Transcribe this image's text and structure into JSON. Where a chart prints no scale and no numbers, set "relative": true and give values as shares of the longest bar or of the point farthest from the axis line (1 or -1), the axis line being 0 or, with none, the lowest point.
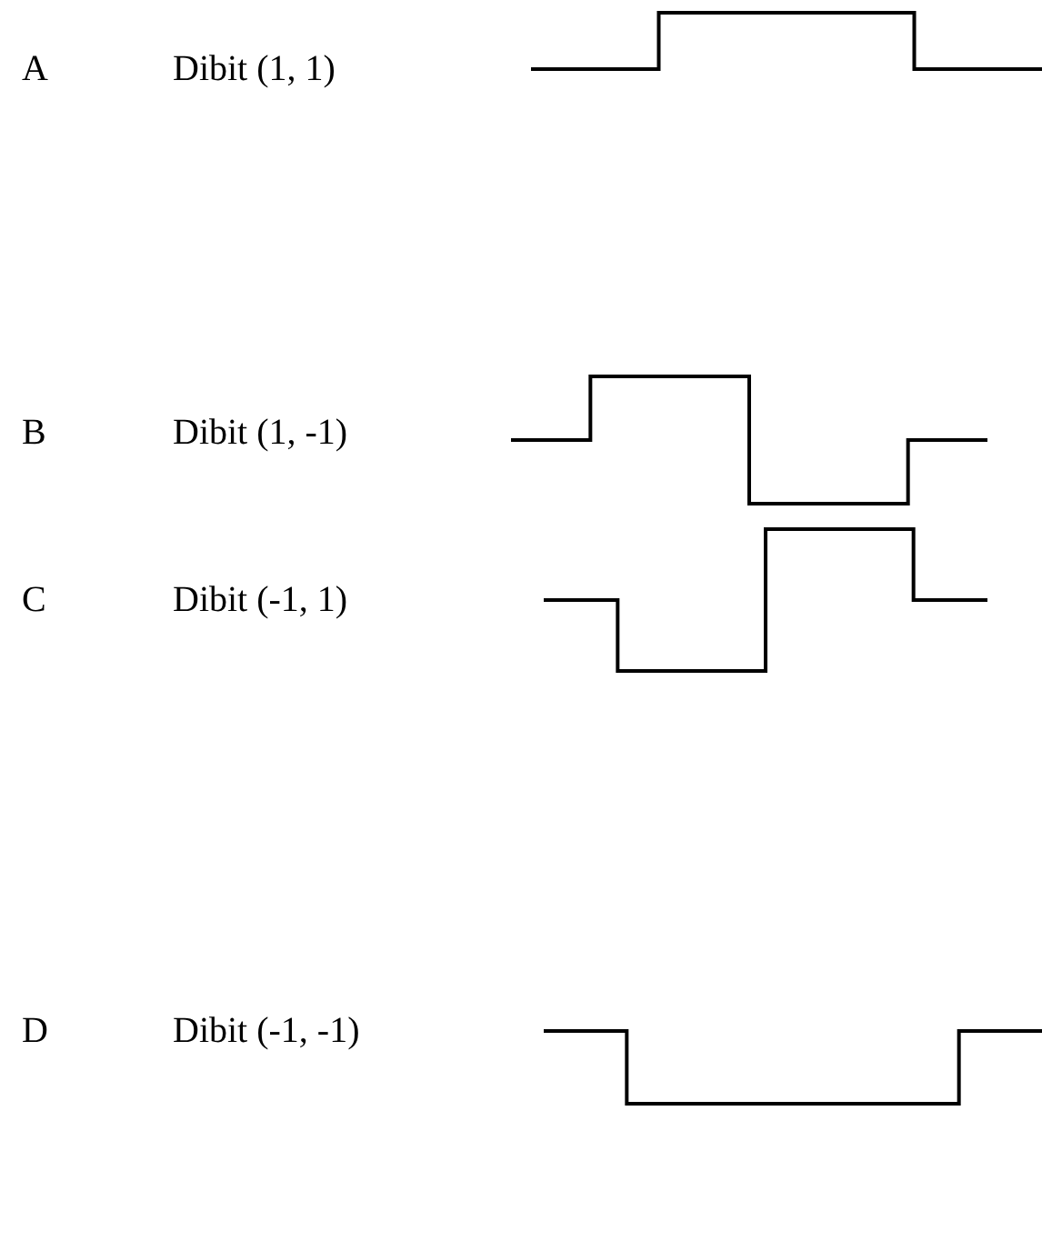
{
  "chart_data": [
    {
      "type": "step",
      "annotations": [
        "A"
      ],
      "title": "Dibit (1, 1)",
      "categories": [
        null,
        null,
        null
      ],
      "values": [
        0,
        1,
        0
      ],
      "color": "#000000",
      "relative": true
    },
    {
      "type": "step",
      "annotations": [
        "B"
      ],
      "title": "Dibit (1, -1)",
      "categories": [
        null,
        null,
        null,
        null
      ],
      "values": [
        0.5,
        1,
        0,
        0.5
      ],
      "color": "#000000",
      "relative": true
    },
    {
      "type": "step",
      "annotations": [
        "C"
      ],
      "title": "Dibit (-1, 1)",
      "categories": [
        null,
        null,
        null,
        null
      ],
      "values": [
        0.5,
        0,
        1,
        0.5
      ],
      "color": "#000000",
      "relative": true
    },
    {
      "type": "step",
      "annotations": [
        "D"
      ],
      "title": "Dibit (-1, -1)",
      "categories": [
        null,
        null,
        null,
        null
      ],
      "values": [
        1,
        0,
        0,
        1
      ],
      "color": "#000000",
      "relative": true
    }
  ]
}
